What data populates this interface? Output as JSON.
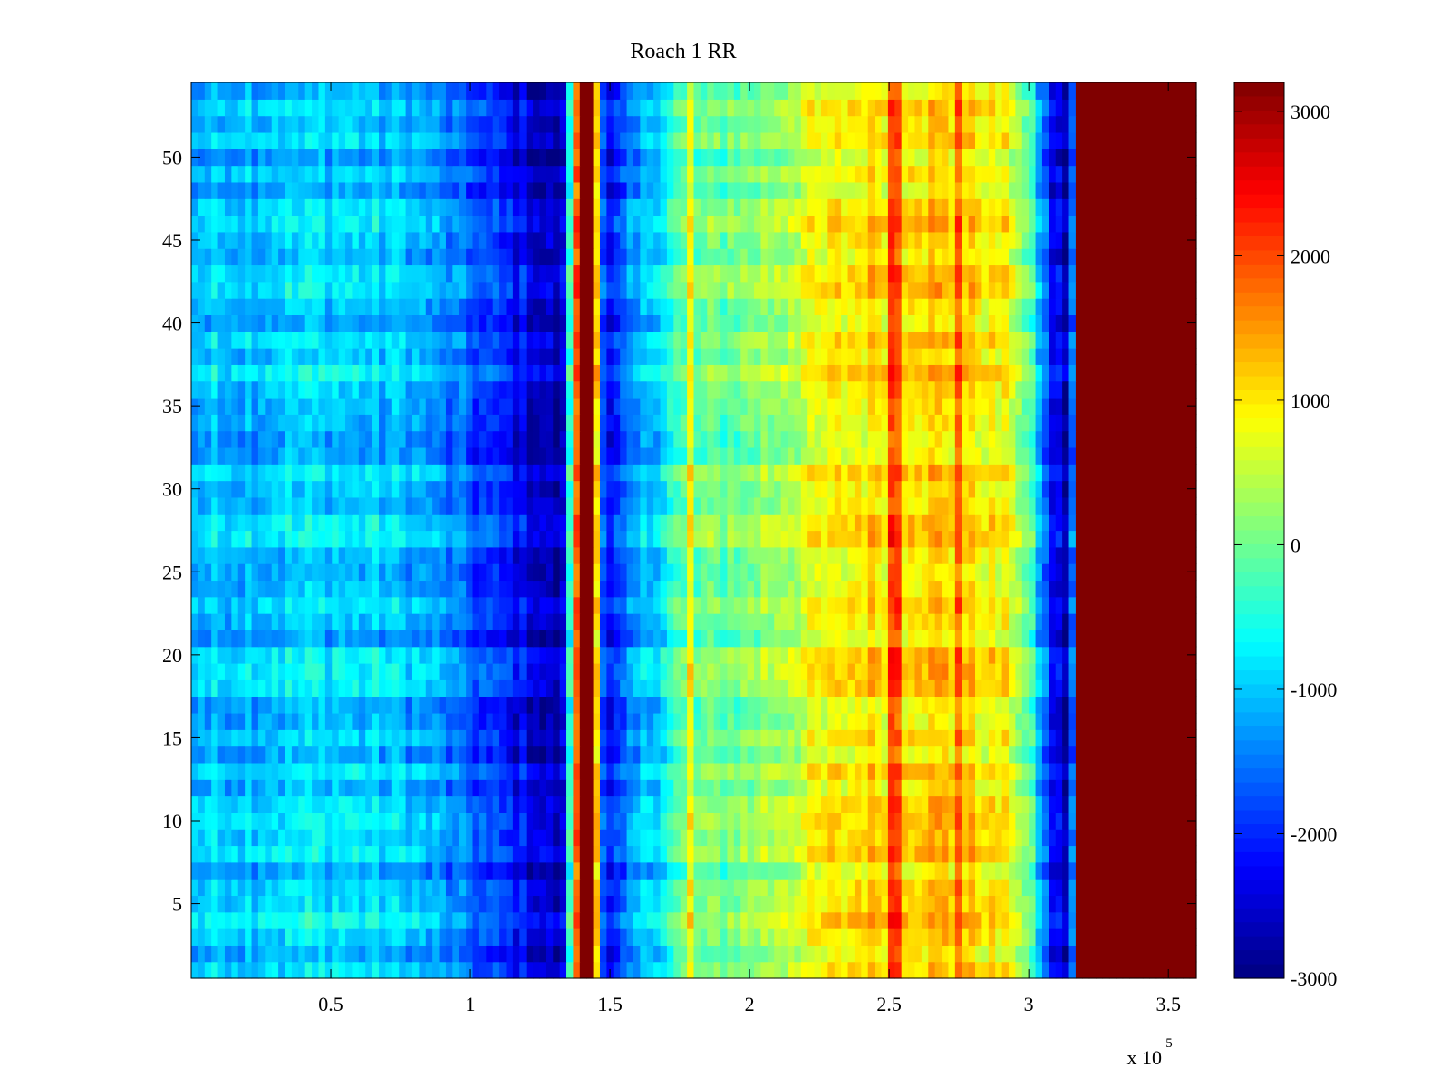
{
  "chart_data": {
    "type": "heatmap",
    "title": "Roach 1 RR",
    "xlabel": "",
    "ylabel": "",
    "x_exponent_label": "x 10",
    "x_exponent_sup": "5",
    "x_scale": 100000,
    "xlim": [
      0,
      360000
    ],
    "ylim": [
      0.5,
      54.5
    ],
    "x_ticks": [
      {
        "value": 50000,
        "label": "0.5"
      },
      {
        "value": 100000,
        "label": "1"
      },
      {
        "value": 150000,
        "label": "1.5"
      },
      {
        "value": 200000,
        "label": "2"
      },
      {
        "value": 250000,
        "label": "2.5"
      },
      {
        "value": 300000,
        "label": "3"
      },
      {
        "value": 350000,
        "label": "3.5"
      }
    ],
    "y_ticks": [
      {
        "value": 5,
        "label": "5"
      },
      {
        "value": 10,
        "label": "10"
      },
      {
        "value": 15,
        "label": "15"
      },
      {
        "value": 20,
        "label": "20"
      },
      {
        "value": 25,
        "label": "25"
      },
      {
        "value": 30,
        "label": "30"
      },
      {
        "value": 35,
        "label": "35"
      },
      {
        "value": 40,
        "label": "40"
      },
      {
        "value": 45,
        "label": "45"
      },
      {
        "value": 50,
        "label": "50"
      }
    ],
    "rows": 54,
    "colormap": "jet",
    "clim": [
      -3000,
      3200
    ],
    "colorbar_ticks": [
      {
        "value": 3000,
        "label": "3000"
      },
      {
        "value": 2000,
        "label": "2000"
      },
      {
        "value": 1000,
        "label": "1000"
      },
      {
        "value": 0,
        "label": "0"
      },
      {
        "value": -1000,
        "label": "-1000"
      },
      {
        "value": -2000,
        "label": "-2000"
      },
      {
        "value": -3000,
        "label": "-3000"
      }
    ],
    "profile_x": [
      0,
      20000,
      50000,
      80000,
      100000,
      115000,
      125000,
      133000,
      137000,
      140000,
      144000,
      147000,
      150000,
      160000,
      175000,
      200000,
      220000,
      240000,
      260000,
      280000,
      295000,
      302000,
      308000,
      315000,
      318000,
      322000,
      330000,
      340000,
      360000
    ],
    "profile_values": [
      -1100,
      -1000,
      -900,
      -1100,
      -1700,
      -2200,
      -2500,
      -2800,
      1000,
      3200,
      3200,
      -1500,
      -2300,
      -1300,
      -200,
      100,
      600,
      1000,
      1200,
      1050,
      700,
      -600,
      -2200,
      -2800,
      3200,
      3200,
      3200,
      3200,
      3200
    ],
    "notable_columns_x": [
      143000,
      178000,
      252000,
      274000
    ],
    "notes": "row values vary around the column profile"
  }
}
